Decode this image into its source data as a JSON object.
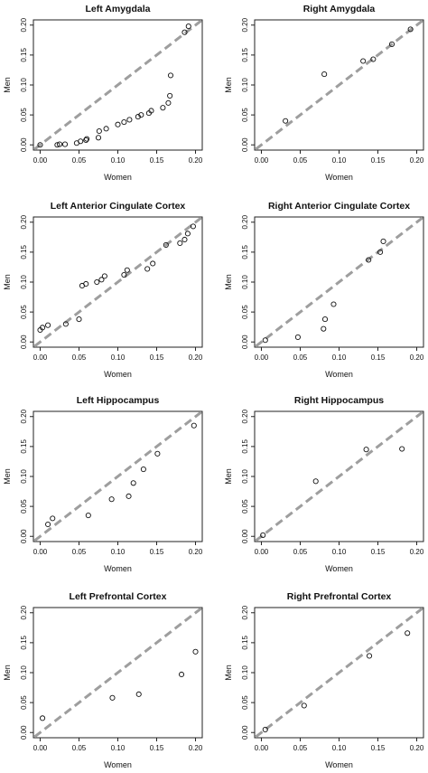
{
  "chart_data": [
    {
      "type": "scatter",
      "title": "Left Amygdala",
      "xlabel": "Women",
      "ylabel": "Men",
      "xlim": [
        0,
        0.2
      ],
      "ylim": [
        0,
        0.2
      ],
      "x_ticks": [
        "0.00",
        "0.05",
        "0.10",
        "0.15",
        "0.20"
      ],
      "y_ticks": [
        "0.00",
        "0.05",
        "0.10",
        "0.15",
        "0.20"
      ],
      "reference_line": "dashed identity line y = x",
      "points": [
        {
          "x": 0.0,
          "y": 0.0
        },
        {
          "x": 0.022,
          "y": 0.0
        },
        {
          "x": 0.025,
          "y": 0.001
        },
        {
          "x": 0.032,
          "y": 0.001
        },
        {
          "x": 0.047,
          "y": 0.003
        },
        {
          "x": 0.052,
          "y": 0.006
        },
        {
          "x": 0.059,
          "y": 0.008
        },
        {
          "x": 0.06,
          "y": 0.01
        },
        {
          "x": 0.075,
          "y": 0.012
        },
        {
          "x": 0.076,
          "y": 0.023
        },
        {
          "x": 0.085,
          "y": 0.027
        },
        {
          "x": 0.1,
          "y": 0.034
        },
        {
          "x": 0.108,
          "y": 0.038
        },
        {
          "x": 0.115,
          "y": 0.042
        },
        {
          "x": 0.126,
          "y": 0.047
        },
        {
          "x": 0.13,
          "y": 0.05
        },
        {
          "x": 0.14,
          "y": 0.053
        },
        {
          "x": 0.143,
          "y": 0.057
        },
        {
          "x": 0.158,
          "y": 0.062
        },
        {
          "x": 0.165,
          "y": 0.07
        },
        {
          "x": 0.167,
          "y": 0.082
        },
        {
          "x": 0.168,
          "y": 0.116
        },
        {
          "x": 0.186,
          "y": 0.188
        },
        {
          "x": 0.191,
          "y": 0.198
        }
      ]
    },
    {
      "type": "scatter",
      "title": "Right Amygdala",
      "xlabel": "Women",
      "ylabel": "Men",
      "xlim": [
        0,
        0.2
      ],
      "ylim": [
        0,
        0.2
      ],
      "x_ticks": [
        "0.00",
        "0.05",
        "0.10",
        "0.15",
        "0.20"
      ],
      "y_ticks": [
        "0.00",
        "0.05",
        "0.10",
        "0.15",
        "0.20"
      ],
      "reference_line": "dashed identity line y = x",
      "points": [
        {
          "x": 0.031,
          "y": 0.04
        },
        {
          "x": 0.081,
          "y": 0.118
        },
        {
          "x": 0.131,
          "y": 0.14
        },
        {
          "x": 0.144,
          "y": 0.143
        },
        {
          "x": 0.168,
          "y": 0.168
        },
        {
          "x": 0.192,
          "y": 0.193
        }
      ]
    },
    {
      "type": "scatter",
      "title": "Left Anterior Cingulate Cortex",
      "xlabel": "Women",
      "ylabel": "Men",
      "xlim": [
        0,
        0.2
      ],
      "ylim": [
        0,
        0.2
      ],
      "x_ticks": [
        "0.00",
        "0.05",
        "0.10",
        "0.15",
        "0.20"
      ],
      "y_ticks": [
        "0.00",
        "0.05",
        "0.10",
        "0.15",
        "0.20"
      ],
      "reference_line": "dashed identity line y = x",
      "points": [
        {
          "x": 0.0,
          "y": 0.02
        },
        {
          "x": 0.003,
          "y": 0.024
        },
        {
          "x": 0.01,
          "y": 0.028
        },
        {
          "x": 0.033,
          "y": 0.03
        },
        {
          "x": 0.05,
          "y": 0.038
        },
        {
          "x": 0.054,
          "y": 0.094
        },
        {
          "x": 0.059,
          "y": 0.097
        },
        {
          "x": 0.073,
          "y": 0.1
        },
        {
          "x": 0.079,
          "y": 0.104
        },
        {
          "x": 0.083,
          "y": 0.11
        },
        {
          "x": 0.108,
          "y": 0.112
        },
        {
          "x": 0.112,
          "y": 0.12
        },
        {
          "x": 0.138,
          "y": 0.122
        },
        {
          "x": 0.145,
          "y": 0.131
        },
        {
          "x": 0.162,
          "y": 0.162
        },
        {
          "x": 0.18,
          "y": 0.165
        },
        {
          "x": 0.186,
          "y": 0.171
        },
        {
          "x": 0.19,
          "y": 0.181
        },
        {
          "x": 0.197,
          "y": 0.193
        }
      ]
    },
    {
      "type": "scatter",
      "title": "Right Anterior Cingulate Cortex",
      "xlabel": "Women",
      "ylabel": "Men",
      "xlim": [
        0,
        0.2
      ],
      "ylim": [
        0,
        0.2
      ],
      "x_ticks": [
        "0.00",
        "0.05",
        "0.10",
        "0.15",
        "0.20"
      ],
      "y_ticks": [
        "0.00",
        "0.05",
        "0.10",
        "0.15",
        "0.20"
      ],
      "reference_line": "dashed identity line y = x",
      "points": [
        {
          "x": 0.005,
          "y": 0.003
        },
        {
          "x": 0.047,
          "y": 0.008
        },
        {
          "x": 0.08,
          "y": 0.022
        },
        {
          "x": 0.082,
          "y": 0.038
        },
        {
          "x": 0.093,
          "y": 0.063
        },
        {
          "x": 0.138,
          "y": 0.137
        },
        {
          "x": 0.153,
          "y": 0.15
        },
        {
          "x": 0.157,
          "y": 0.168
        }
      ]
    },
    {
      "type": "scatter",
      "title": "Left Hippocampus",
      "xlabel": "Women",
      "ylabel": "Men",
      "xlim": [
        0,
        0.2
      ],
      "ylim": [
        0,
        0.2
      ],
      "x_ticks": [
        "0.00",
        "0.05",
        "0.10",
        "0.15",
        "0.20"
      ],
      "y_ticks": [
        "0.00",
        "0.05",
        "0.10",
        "0.15",
        "0.20"
      ],
      "reference_line": "dashed identity line y = x",
      "points": [
        {
          "x": 0.01,
          "y": 0.02
        },
        {
          "x": 0.016,
          "y": 0.03
        },
        {
          "x": 0.062,
          "y": 0.035
        },
        {
          "x": 0.092,
          "y": 0.062
        },
        {
          "x": 0.114,
          "y": 0.067
        },
        {
          "x": 0.12,
          "y": 0.089
        },
        {
          "x": 0.133,
          "y": 0.112
        },
        {
          "x": 0.151,
          "y": 0.138
        },
        {
          "x": 0.198,
          "y": 0.185
        }
      ]
    },
    {
      "type": "scatter",
      "title": "Right Hippocampus",
      "xlabel": "Women",
      "ylabel": "Men",
      "xlim": [
        0,
        0.2
      ],
      "ylim": [
        0,
        0.2
      ],
      "x_ticks": [
        "0.00",
        "0.05",
        "0.10",
        "0.15",
        "0.20"
      ],
      "y_ticks": [
        "0.00",
        "0.05",
        "0.10",
        "0.15",
        "0.20"
      ],
      "reference_line": "dashed identity line y = x",
      "points": [
        {
          "x": 0.002,
          "y": 0.002
        },
        {
          "x": 0.07,
          "y": 0.092
        },
        {
          "x": 0.135,
          "y": 0.145
        },
        {
          "x": 0.181,
          "y": 0.146
        }
      ]
    },
    {
      "type": "scatter",
      "title": "Left Prefrontal Cortex",
      "xlabel": "Women",
      "ylabel": "Men",
      "xlim": [
        0,
        0.2
      ],
      "ylim": [
        0,
        0.2
      ],
      "x_ticks": [
        "0.00",
        "0.05",
        "0.10",
        "0.15",
        "0.20"
      ],
      "y_ticks": [
        "0.00",
        "0.05",
        "0.10",
        "0.15",
        "0.20"
      ],
      "reference_line": "dashed identity line y = x",
      "points": [
        {
          "x": 0.003,
          "y": 0.024
        },
        {
          "x": 0.093,
          "y": 0.058
        },
        {
          "x": 0.127,
          "y": 0.064
        },
        {
          "x": 0.182,
          "y": 0.097
        },
        {
          "x": 0.2,
          "y": 0.135
        }
      ]
    },
    {
      "type": "scatter",
      "title": "Right Prefrontal Cortex",
      "xlabel": "Women",
      "ylabel": "Men",
      "xlim": [
        0,
        0.2
      ],
      "ylim": [
        0,
        0.2
      ],
      "x_ticks": [
        "0.00",
        "0.05",
        "0.10",
        "0.15",
        "0.20"
      ],
      "y_ticks": [
        "0.00",
        "0.05",
        "0.10",
        "0.15",
        "0.20"
      ],
      "reference_line": "dashed identity line y = x",
      "points": [
        {
          "x": 0.005,
          "y": 0.005
        },
        {
          "x": 0.055,
          "y": 0.045
        },
        {
          "x": 0.139,
          "y": 0.128
        },
        {
          "x": 0.188,
          "y": 0.166
        }
      ]
    }
  ],
  "colors": {
    "frame": "#222222",
    "identity_line": "#9e9e9e",
    "point_outline": "#111111",
    "background": "#ffffff"
  }
}
